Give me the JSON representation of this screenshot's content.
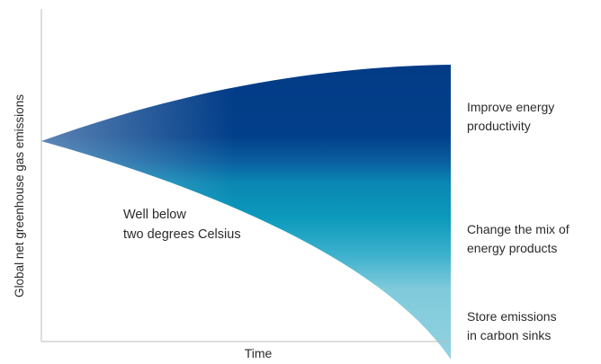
{
  "chart_data": {
    "type": "area",
    "title": "",
    "xlabel": "Time",
    "ylabel": "Global net greenhouse gas emissions",
    "grid": false,
    "legend": "none",
    "annotation": [
      "Well below",
      "two degrees Celsius"
    ],
    "bands": [
      {
        "label": [
          "Improve energy",
          "productivity"
        ],
        "color": "#033b86"
      },
      {
        "label": [
          "Change the mix of",
          "energy products"
        ],
        "color": "#0a95b6"
      },
      {
        "label": [
          "Store emissions",
          "in carbon sinks"
        ],
        "color": "#8ccfdd"
      }
    ],
    "colors": {
      "axis": "#bcbcbc",
      "text": "#2b2b2b"
    }
  }
}
